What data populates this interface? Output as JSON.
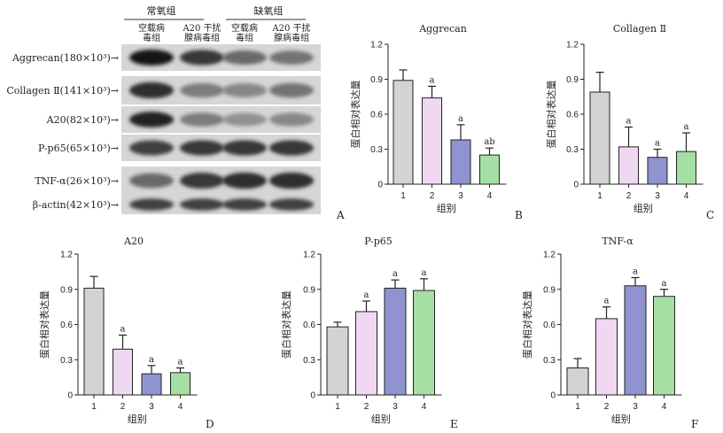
{
  "blot": {
    "group_headers": [
      "常氧组",
      "缺氧组"
    ],
    "lane_labels": [
      [
        "空载病",
        "毒组"
      ],
      [
        "A20 干扰",
        "腺病毒组"
      ],
      [
        "空载病",
        "毒组"
      ],
      [
        "A20 干扰",
        "腺病毒组"
      ]
    ],
    "row_labels": [
      "Aggrecan(180×10³)→",
      "Collagen Ⅱ(141×10³)→",
      "A20(82×10³)→",
      "P-p65(65×10³)→",
      "TNF-α(26×10³)→",
      "β-actin(42×10³)→"
    ],
    "intensity": [
      [
        0.95,
        0.8,
        0.55,
        0.5
      ],
      [
        0.85,
        0.45,
        0.4,
        0.5
      ],
      [
        0.9,
        0.45,
        0.35,
        0.4
      ],
      [
        0.75,
        0.8,
        0.8,
        0.8
      ],
      [
        0.55,
        0.8,
        0.85,
        0.85
      ],
      [
        0.75,
        0.75,
        0.75,
        0.75
      ]
    ],
    "panel_letter": "A"
  },
  "colors": [
    "#d3d3d3",
    "#f0d7f2",
    "#8f93cf",
    "#a6dfa4"
  ],
  "chart_data": [
    {
      "type": "bar",
      "title": "Aggrecan",
      "panel": "B",
      "categories": [
        "1",
        "2",
        "3",
        "4"
      ],
      "values": [
        0.89,
        0.74,
        0.38,
        0.25
      ],
      "errors": [
        0.09,
        0.1,
        0.13,
        0.06
      ],
      "sig": [
        "",
        "a",
        "a",
        "ab"
      ],
      "xlabel": "组别",
      "ylabel": "蛋白相对表达量",
      "ylim": [
        0,
        1.2
      ],
      "yticks": [
        "0",
        "0.3",
        "0.6",
        "0.9",
        "1.2"
      ]
    },
    {
      "type": "bar",
      "title": "Collagen Ⅱ",
      "panel": "C",
      "categories": [
        "1",
        "2",
        "3",
        "4"
      ],
      "values": [
        0.79,
        0.32,
        0.23,
        0.28
      ],
      "errors": [
        0.17,
        0.17,
        0.07,
        0.16
      ],
      "sig": [
        "",
        "a",
        "a",
        "a"
      ],
      "xlabel": "组别",
      "ylabel": "蛋白相对表达量",
      "ylim": [
        0,
        1.2
      ],
      "yticks": [
        "0",
        "0.3",
        "0.6",
        "0.9",
        "1.2"
      ]
    },
    {
      "type": "bar",
      "title": "A20",
      "panel": "D",
      "categories": [
        "1",
        "2",
        "3",
        "4"
      ],
      "values": [
        0.91,
        0.39,
        0.18,
        0.19
      ],
      "errors": [
        0.1,
        0.12,
        0.07,
        0.04
      ],
      "sig": [
        "",
        "a",
        "a",
        "a"
      ],
      "xlabel": "组别",
      "ylabel": "蛋白相对表达量",
      "ylim": [
        0,
        1.2
      ],
      "yticks": [
        "0",
        "0.3",
        "0.6",
        "0.9",
        "1.2"
      ]
    },
    {
      "type": "bar",
      "title": "P-p65",
      "panel": "E",
      "categories": [
        "1",
        "2",
        "3",
        "4"
      ],
      "values": [
        0.58,
        0.71,
        0.91,
        0.89
      ],
      "errors": [
        0.04,
        0.09,
        0.07,
        0.1
      ],
      "sig": [
        "",
        "a",
        "a",
        "a"
      ],
      "xlabel": "组别",
      "ylabel": "蛋白相对表达量",
      "ylim": [
        0,
        1.2
      ],
      "yticks": [
        "0",
        "0.3",
        "0.6",
        "0.9",
        "1.2"
      ]
    },
    {
      "type": "bar",
      "title": "TNF-α",
      "panel": "F",
      "categories": [
        "1",
        "2",
        "3",
        "4"
      ],
      "values": [
        0.23,
        0.65,
        0.93,
        0.84
      ],
      "errors": [
        0.08,
        0.1,
        0.07,
        0.06
      ],
      "sig": [
        "",
        "a",
        "a",
        "a"
      ],
      "xlabel": "组别",
      "ylabel": "蛋白相对表达量",
      "ylim": [
        0,
        1.2
      ],
      "yticks": [
        "0",
        "0.3",
        "0.6",
        "0.9",
        "1.2"
      ]
    }
  ]
}
